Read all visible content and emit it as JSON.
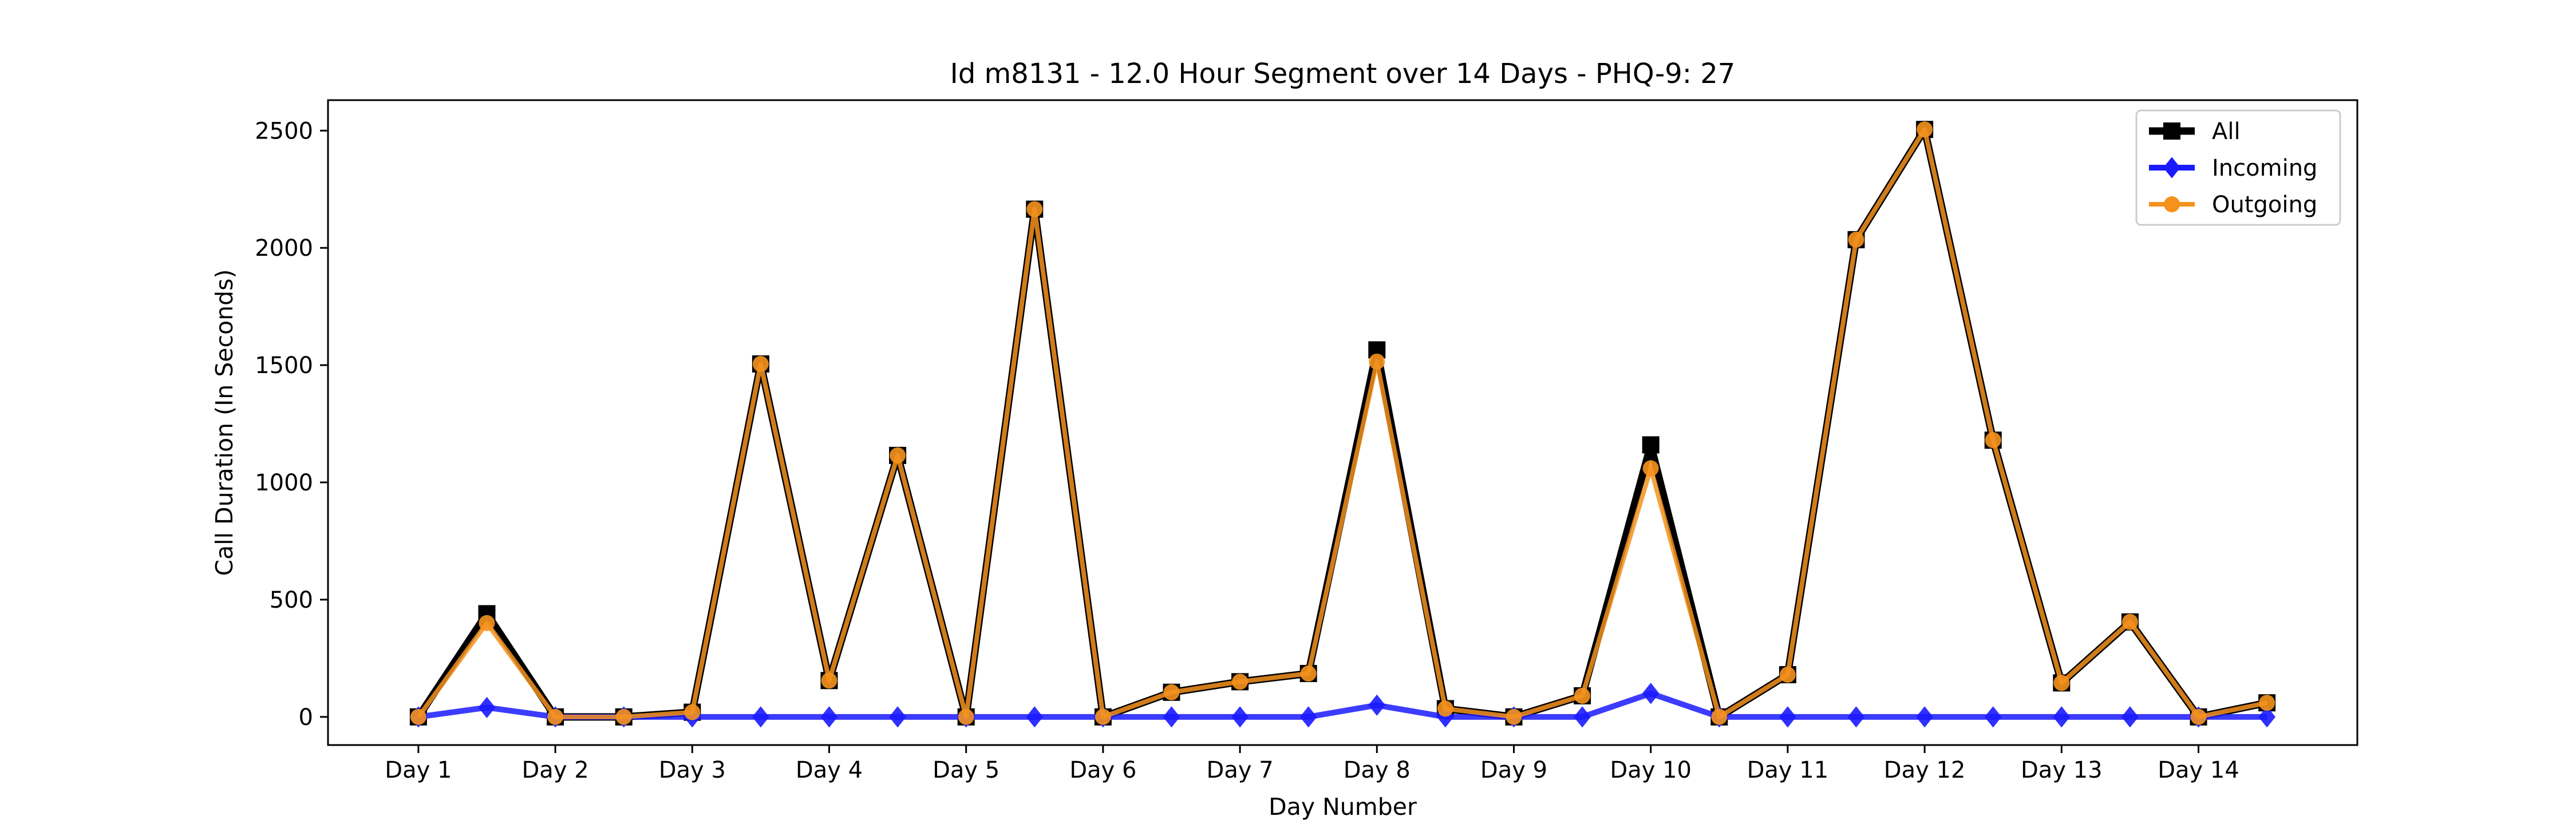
{
  "chart_data": {
    "type": "line",
    "title": "Id m8131 - 12.0 Hour Segment over 14 Days - PHQ-9: 27",
    "xlabel": "Day Number",
    "ylabel": "Call Duration (In Seconds)",
    "x_ticks": [
      "Day 1",
      "Day 2",
      "Day 3",
      "Day 4",
      "Day 5",
      "Day 6",
      "Day 7",
      "Day 8",
      "Day 9",
      "Day 10",
      "Day 11",
      "Day 12",
      "Day 13",
      "Day 14"
    ],
    "y_ticks": [
      0,
      500,
      1000,
      1500,
      2000,
      2500
    ],
    "xlim": [
      0.34,
      15.16
    ],
    "ylim": [
      -120,
      2630
    ],
    "grid": false,
    "legend_position": "top-right",
    "x": [
      1,
      1.5,
      2,
      2.5,
      3,
      3.5,
      4,
      4.5,
      5,
      5.5,
      6,
      6.5,
      7,
      7.5,
      8,
      8.5,
      9,
      9.5,
      10,
      10.5,
      11,
      11.5,
      12,
      12.5,
      13,
      13.5,
      14,
      14.5
    ],
    "series": [
      {
        "name": "All",
        "color": "#000000",
        "marker": "square",
        "values": [
          0,
          440,
          0,
          0,
          20,
          1505,
          155,
          1115,
          0,
          2165,
          0,
          105,
          150,
          185,
          1565,
          35,
          0,
          90,
          1160,
          0,
          180,
          2035,
          2505,
          1180,
          145,
          405,
          0,
          60
        ]
      },
      {
        "name": "Incoming",
        "color": "#1a1aff",
        "marker": "diamond",
        "values": [
          0,
          40,
          0,
          0,
          0,
          0,
          0,
          0,
          0,
          0,
          0,
          0,
          0,
          0,
          50,
          0,
          0,
          0,
          100,
          0,
          0,
          0,
          0,
          0,
          0,
          0,
          0,
          0
        ]
      },
      {
        "name": "Outgoing",
        "color": "#f5921e",
        "marker": "circle",
        "values": [
          0,
          400,
          0,
          0,
          20,
          1505,
          155,
          1115,
          0,
          2165,
          0,
          105,
          150,
          185,
          1515,
          35,
          0,
          90,
          1060,
          0,
          180,
          2035,
          2505,
          1180,
          145,
          405,
          0,
          60
        ]
      }
    ]
  }
}
